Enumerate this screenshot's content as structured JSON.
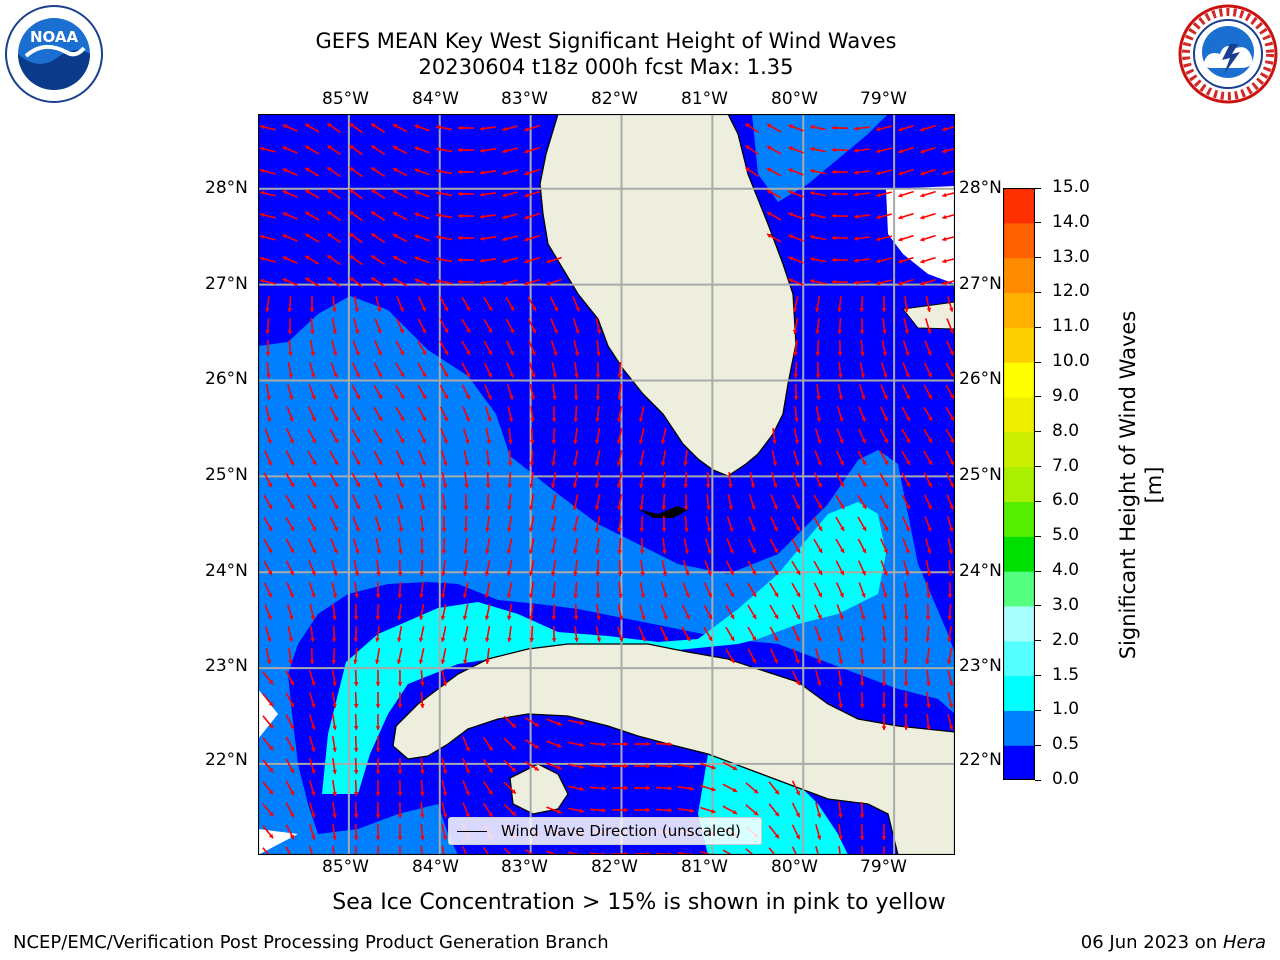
{
  "title": {
    "line1": "GEFS MEAN Key West Significant Height of Wind Waves",
    "line2": "20230604 t18z 000h fcst   Max: 1.35"
  },
  "logos": {
    "left": {
      "icon": "noaa-logo",
      "text": "NOAA",
      "ring_text": "NATIONAL OCEANIC AND ATMOSPHERIC ADMINISTRATION · U.S. DEPARTMENT OF COMMERCE"
    },
    "right": {
      "icon": "nws-logo",
      "ring_text": "NATIONAL WEATHER SERVICE"
    }
  },
  "map": {
    "lon_labels": [
      "85°W",
      "84°W",
      "83°W",
      "82°W",
      "81°W",
      "80°W",
      "79°W"
    ],
    "lat_labels": [
      "28°N",
      "27°N",
      "26°N",
      "25°N",
      "24°N",
      "23°N",
      "22°N"
    ],
    "lon_range": [
      -86.0,
      -78.33
    ],
    "lat_range": [
      21.05,
      28.78
    ],
    "grid": true,
    "colors": {
      "ocean_low": "#0000ff",
      "ocean_mid": "#0080ff",
      "ocean_high": "#00ffff",
      "land": "#eeeede",
      "arrow": "#ff0000",
      "grid": "#aaaaaa"
    }
  },
  "legend": {
    "label": "Wind Wave Direction (unscaled)"
  },
  "colorbar": {
    "title": "Significant Height of Wind Waves [m]",
    "ticks": [
      "0.0",
      "0.5",
      "1.0",
      "1.5",
      "2.0",
      "3.0",
      "4.0",
      "5.0",
      "6.0",
      "7.0",
      "8.0",
      "9.0",
      "10.0",
      "11.0",
      "12.0",
      "13.0",
      "14.0",
      "15.0"
    ],
    "colors": [
      "#0000ff",
      "#0080ff",
      "#00ffff",
      "#55ffff",
      "#aaffff",
      "#55ff80",
      "#00e000",
      "#55ee00",
      "#aaee00",
      "#ccee00",
      "#eeee00",
      "#ffff00",
      "#ffd000",
      "#ffb000",
      "#ff8c00",
      "#ff6000",
      "#ff3000",
      "#ff0000"
    ]
  },
  "caption": "Sea Ice Concentration > 15% is shown in pink to yellow",
  "footer": {
    "left": "NCEP/EMC/Verification Post Processing Product Generation Branch",
    "right_date": "06 Jun 2023 on ",
    "right_host": "Hera"
  }
}
